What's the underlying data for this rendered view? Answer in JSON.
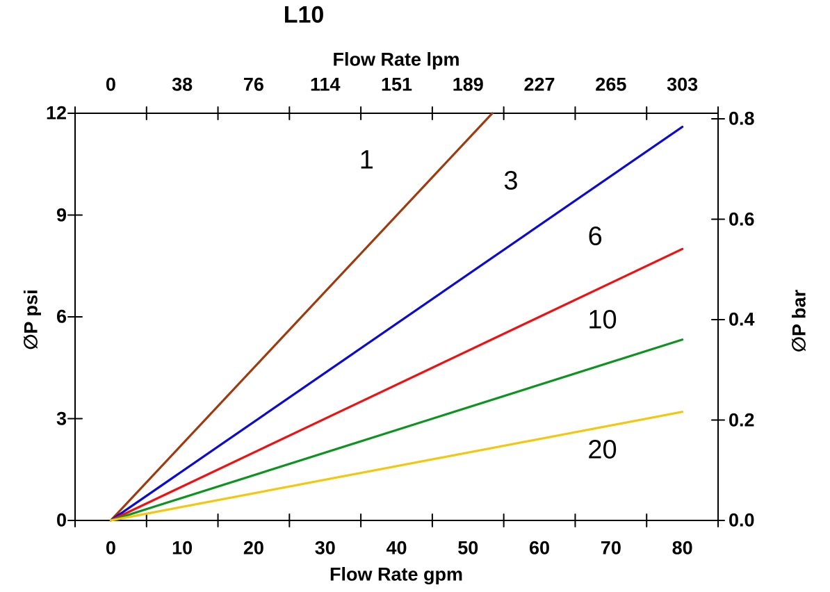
{
  "chart_data": {
    "type": "line",
    "title": "L10",
    "background": "#ffffff",
    "axis_color": "#000000",
    "grid": false,
    "legend": "inline curve labels (micron ratings)",
    "axes": {
      "bottom": {
        "label": "Flow Rate gpm",
        "tick_values": [
          0,
          10,
          20,
          30,
          40,
          50,
          60,
          70,
          80
        ],
        "tick_marks_between_labels": [
          -5,
          5,
          15,
          25,
          35,
          45,
          55,
          65,
          75,
          85
        ],
        "range": [
          -5,
          85
        ]
      },
      "top": {
        "label": "Flow Rate lpm",
        "tick_values": [
          0,
          38,
          76,
          114,
          151,
          189,
          227,
          265,
          303
        ],
        "range": [
          -19,
          322
        ]
      },
      "left": {
        "label": "∅P psi",
        "tick_values": [
          0,
          3,
          6,
          9,
          12
        ],
        "range": [
          0,
          12
        ]
      },
      "right": {
        "label": "∅P bar",
        "tick_labels": [
          "0.0",
          "0.2",
          "0.4",
          "0.6",
          "0.8"
        ],
        "tick_values": [
          0.0,
          0.2,
          0.4,
          0.6,
          0.8
        ],
        "range": [
          0,
          0.8
        ]
      }
    },
    "series": [
      {
        "label": "1",
        "color": "#9e3b0e",
        "x": [
          0,
          53.4
        ],
        "y": [
          0,
          12.0
        ],
        "label_xy": [
          35.8,
          10.6
        ]
      },
      {
        "label": "3",
        "color": "#0a0ad0",
        "x": [
          0,
          80
        ],
        "y": [
          0,
          11.6
        ],
        "label_xy": [
          56.0,
          10.0
        ]
      },
      {
        "label": "6",
        "color": "#ee1111",
        "x": [
          0,
          80
        ],
        "y": [
          0,
          8.0
        ],
        "label_xy": [
          67.8,
          8.35
        ]
      },
      {
        "label": "10",
        "color": "#0d9320",
        "x": [
          0,
          80
        ],
        "y": [
          0,
          5.33
        ],
        "label_xy": [
          68.8,
          5.9
        ]
      },
      {
        "label": "20",
        "color": "#f3c70e",
        "x": [
          0,
          80
        ],
        "y": [
          0,
          3.2
        ],
        "label_xy": [
          68.8,
          2.07
        ]
      }
    ]
  }
}
